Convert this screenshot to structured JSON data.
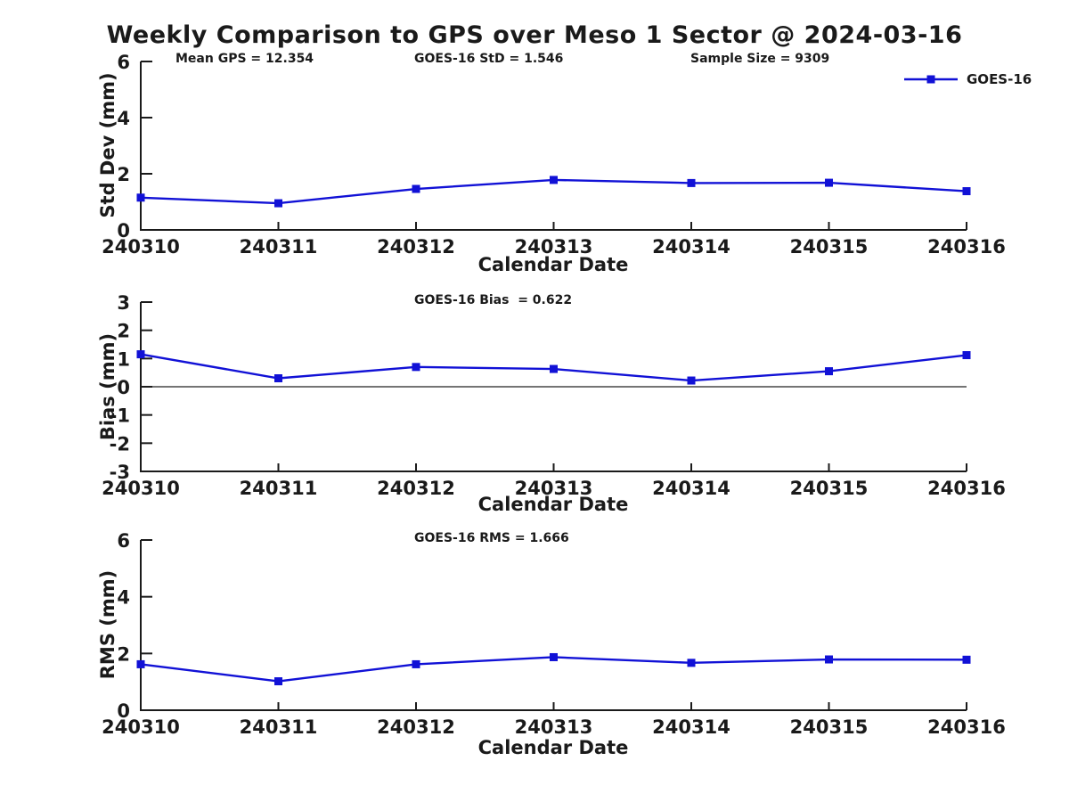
{
  "title": "Weekly Comparison to GPS over Meso 1 Sector @ 2024-03-16",
  "colors": {
    "series": "#1111d6",
    "axis": "#1a1a1a"
  },
  "legend": {
    "label": "GOES-16"
  },
  "stats": {
    "mean_gps": 12.354,
    "goes16_std": 1.546,
    "sample_size": 9309,
    "goes16_bias": 0.622,
    "goes16_rms": 1.666
  },
  "chart_data": [
    {
      "type": "line",
      "name": "std-dev-subplot",
      "ylabel": "Std Dev (mm)",
      "xlabel": "Calendar Date",
      "ylim": [
        0,
        6
      ],
      "yticks": [
        0,
        2,
        4,
        6
      ],
      "grid": false,
      "legend_position": "top-right",
      "categories": [
        "240310",
        "240311",
        "240312",
        "240313",
        "240314",
        "240315",
        "240316"
      ],
      "series": [
        {
          "name": "GOES-16",
          "values": [
            1.15,
            0.95,
            1.46,
            1.78,
            1.67,
            1.68,
            1.38
          ]
        }
      ],
      "annotations": [
        "Mean GPS = 12.354",
        "GOES-16 StD = 1.546",
        "Sample Size = 9309"
      ]
    },
    {
      "type": "line",
      "name": "bias-subplot",
      "ylabel": "Bias (mm)",
      "xlabel": "Calendar Date",
      "ylim": [
        -3,
        3
      ],
      "yticks": [
        3,
        2,
        1,
        0,
        -1,
        -2,
        -3
      ],
      "grid": false,
      "zero_line": true,
      "categories": [
        "240310",
        "240311",
        "240312",
        "240313",
        "240314",
        "240315",
        "240316"
      ],
      "series": [
        {
          "name": "GOES-16",
          "values": [
            1.15,
            0.3,
            0.7,
            0.63,
            0.22,
            0.55,
            1.12
          ]
        }
      ],
      "annotations": [
        "GOES-16 Bias  = 0.622"
      ]
    },
    {
      "type": "line",
      "name": "rms-subplot",
      "ylabel": "RMS (mm)",
      "xlabel": "Calendar Date",
      "ylim": [
        0,
        6
      ],
      "yticks": [
        0,
        2,
        4,
        6
      ],
      "grid": false,
      "categories": [
        "240310",
        "240311",
        "240312",
        "240313",
        "240314",
        "240315",
        "240316"
      ],
      "series": [
        {
          "name": "GOES-16",
          "values": [
            1.62,
            1.02,
            1.62,
            1.87,
            1.67,
            1.79,
            1.78
          ]
        }
      ],
      "annotations": [
        "GOES-16 RMS = 1.666"
      ]
    }
  ]
}
